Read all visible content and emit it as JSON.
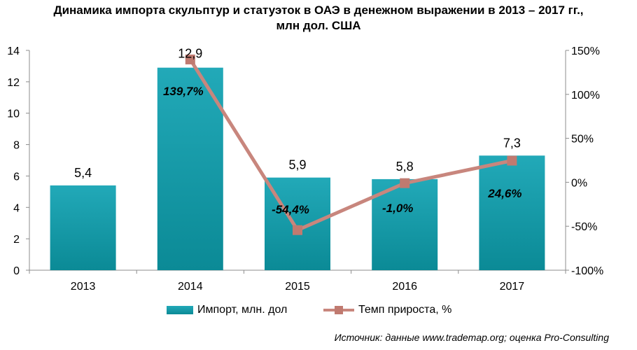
{
  "title": {
    "line1": "Динамика импорта скульптур и статуэток в ОАЭ в денежном выражении в 2013 – 2017 гг.,",
    "line2": "млн дол. США"
  },
  "source": "Источник: данные www.trademap.org; оценка Pro-Consulting",
  "colors": {
    "bar_top": "#22a9b8",
    "bar_bottom": "#0b8a96",
    "line": "#c8867d",
    "marker": "#c07a70"
  },
  "chart_data": {
    "type": "bar",
    "categories": [
      "2013",
      "2014",
      "2015",
      "2016",
      "2017"
    ],
    "series": [
      {
        "name": "Импорт, млн. дол",
        "type": "bar",
        "axis": "left",
        "values": [
          5.4,
          12.9,
          5.9,
          5.8,
          7.3
        ],
        "labels": [
          "5,4",
          "12,9",
          "5,9",
          "5,8",
          "7,3"
        ]
      },
      {
        "name": "Темп прироста, %",
        "type": "line",
        "axis": "right",
        "values": [
          null,
          139.7,
          -54.4,
          -1.0,
          24.6
        ],
        "labels": [
          "",
          "139,7%",
          "-54,4%",
          "-1,0%",
          "24,6%"
        ]
      }
    ],
    "y_left": {
      "range": [
        0,
        14
      ],
      "ticks": [
        "0",
        "2",
        "4",
        "6",
        "8",
        "10",
        "12",
        "14"
      ]
    },
    "y_right": {
      "range": [
        -100,
        150
      ],
      "ticks": [
        "-100%",
        "-50%",
        "0%",
        "50%",
        "100%",
        "150%"
      ]
    },
    "grid": false,
    "legend_position": "bottom"
  }
}
